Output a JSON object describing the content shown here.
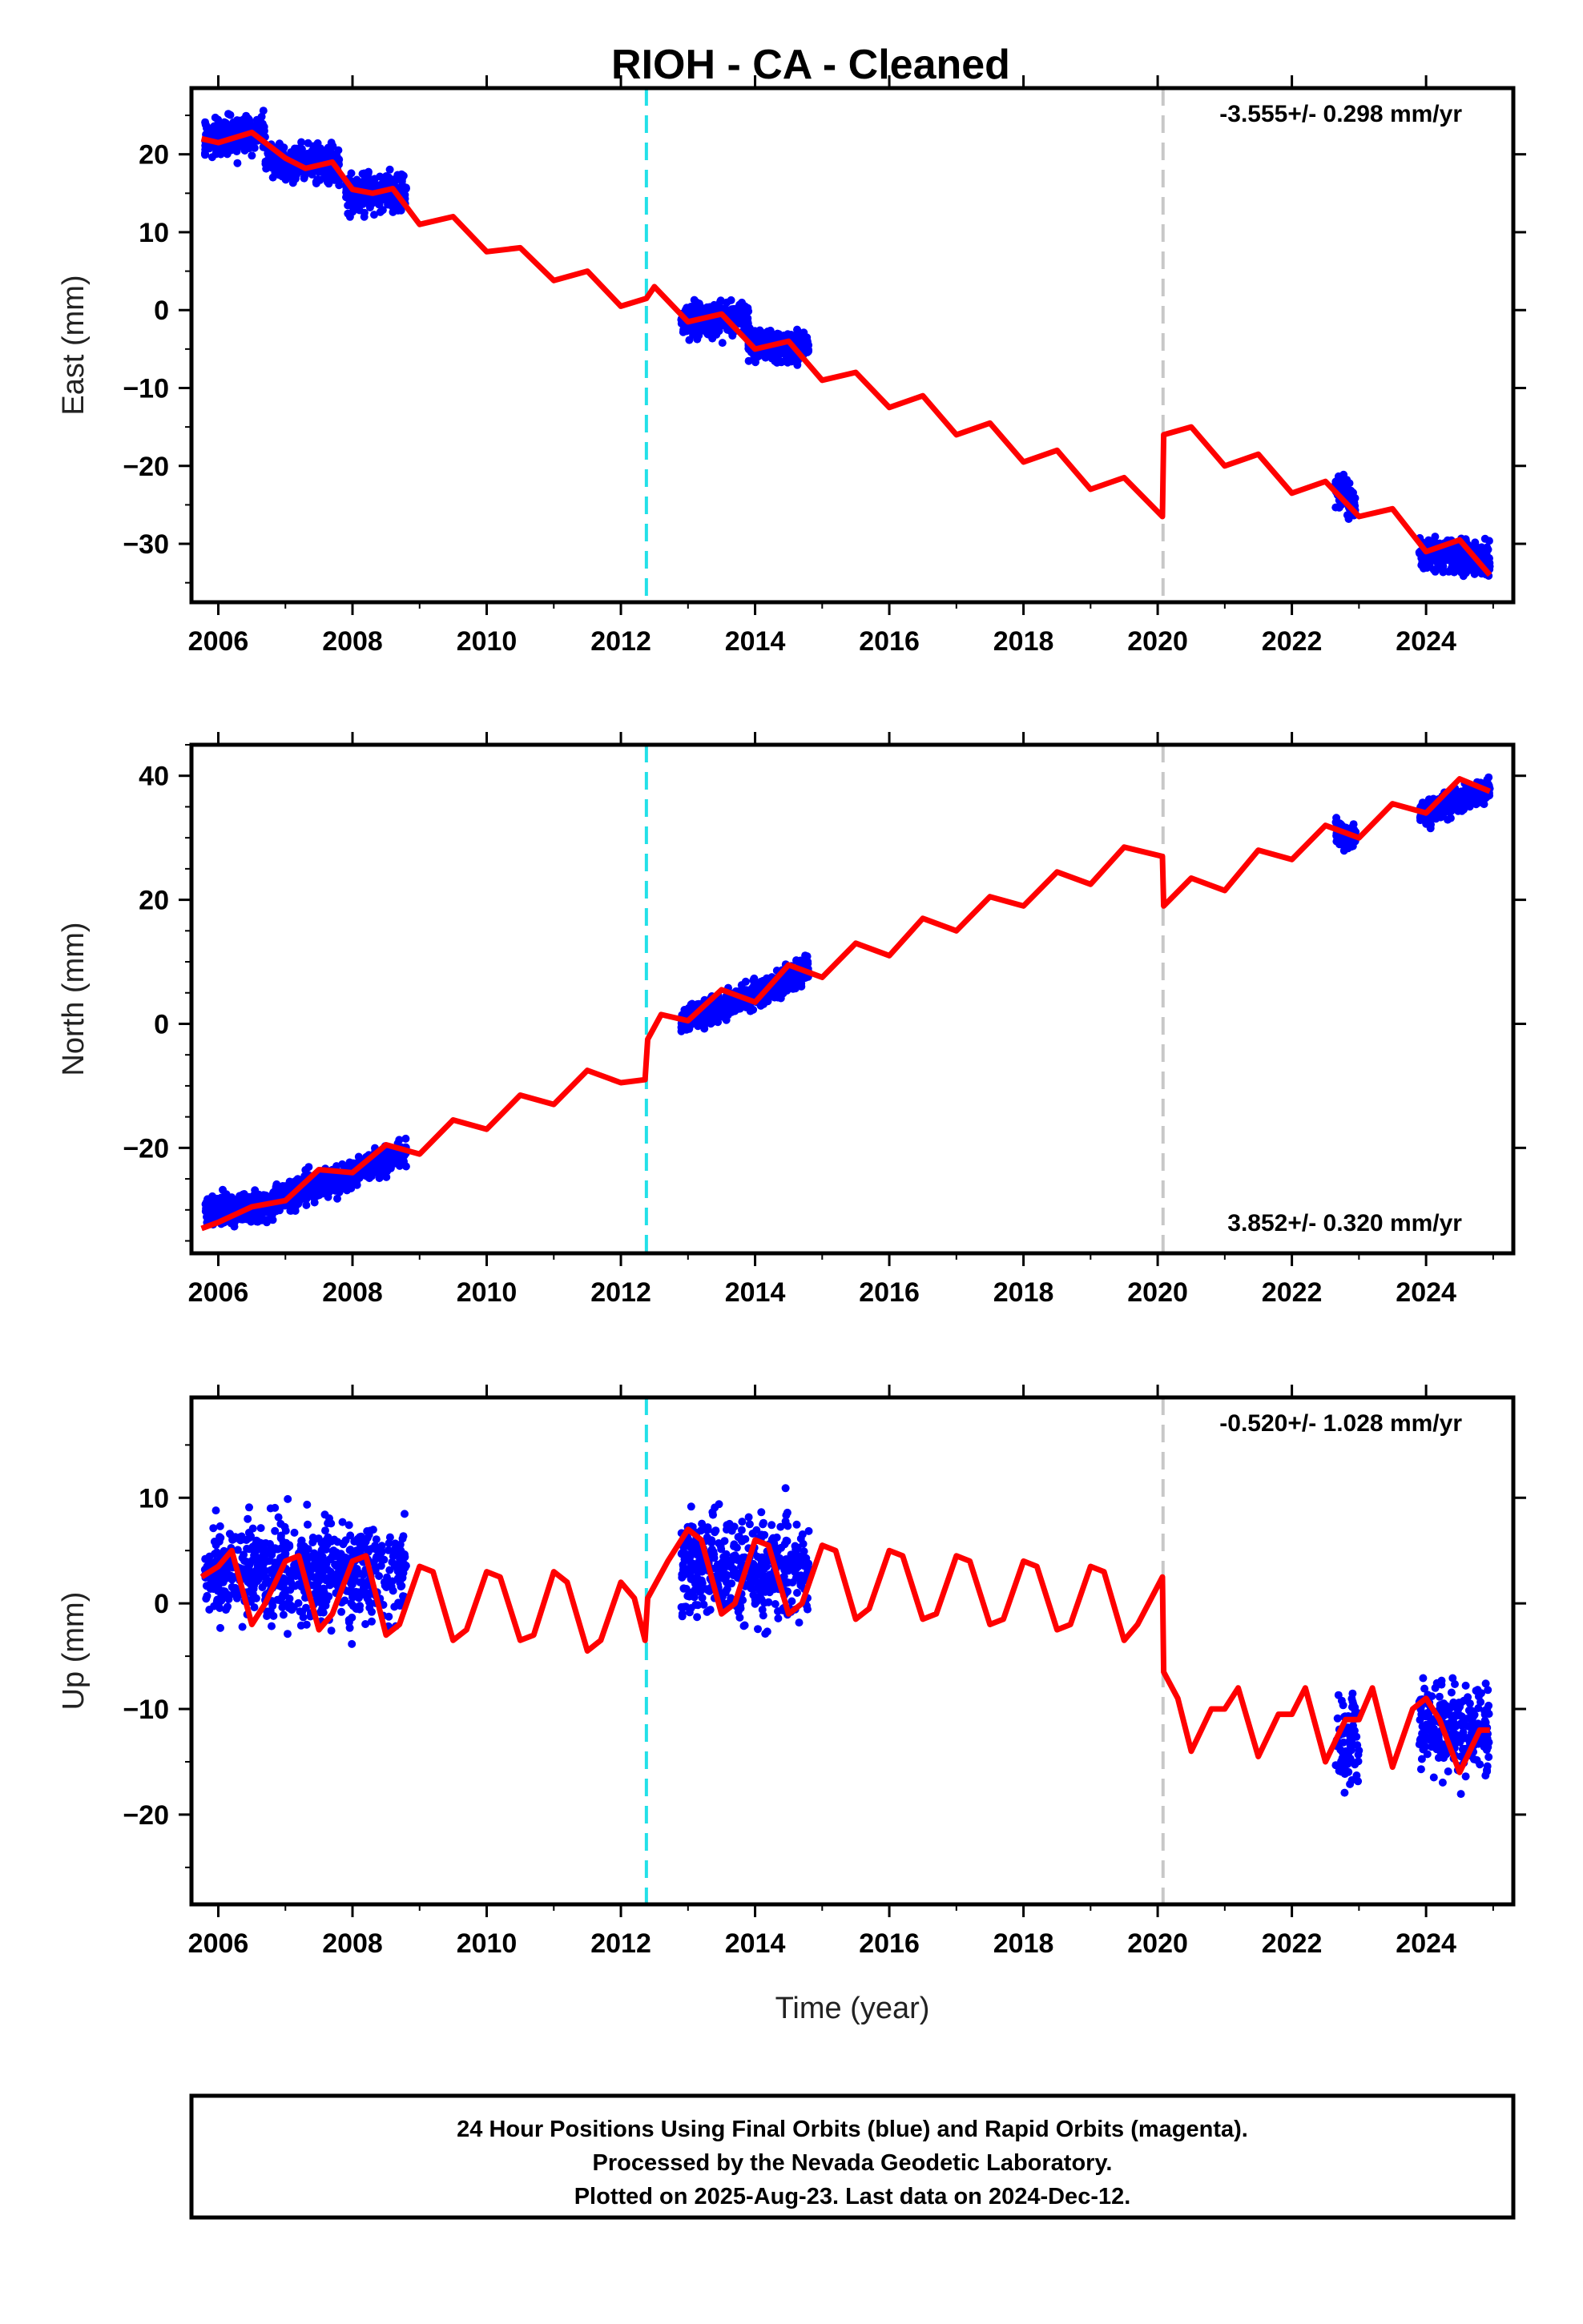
{
  "chart_data": {
    "type": "scatter",
    "title": "RIOH  - CA - Cleaned",
    "xlabel": "Time (year)",
    "xlim": [
      2005.6,
      2025.3
    ],
    "x_ticks": [
      "2006",
      "2008",
      "2010",
      "2012",
      "2014",
      "2016",
      "2018",
      "2020",
      "2022",
      "2024"
    ],
    "vertical_markers": [
      {
        "x": 2012.38,
        "color": "#22e0e8",
        "style": "dashed"
      },
      {
        "x": 2020.08,
        "color": "#c8c8c8",
        "style": "dashed"
      }
    ],
    "colors": {
      "points": "#0000ff",
      "model": "#ff0000"
    },
    "panels": [
      {
        "name": "east",
        "ylabel": "East (mm)",
        "ylim": [
          -37.5,
          28.5
        ],
        "y_ticks": [
          "20",
          "10",
          "0",
          "−10",
          "−20",
          "−30"
        ],
        "rate_label": "-3.555+/- 0.298 mm/yr",
        "rate_position": "top-right",
        "model": {
          "x": [
            2005.75,
            2006.0,
            2006.5,
            2007.0,
            2007.3,
            2007.7,
            2008.0,
            2008.3,
            2008.6,
            2009.0,
            2009.5,
            2010.0,
            2010.5,
            2011.0,
            2011.5,
            2012.0,
            2012.38,
            2012.5,
            2013.0,
            2013.5,
            2014.0,
            2014.5,
            2015.0,
            2015.5,
            2016.0,
            2016.5,
            2017.0,
            2017.5,
            2018.0,
            2018.5,
            2019.0,
            2019.5,
            2020.07,
            2020.09,
            2020.5,
            2021.0,
            2021.5,
            2022.0,
            2022.5,
            2023.0,
            2023.5,
            2024.0,
            2024.5,
            2024.95
          ],
          "y": [
            22,
            21.5,
            22.8,
            19.5,
            18.2,
            19,
            15.5,
            15,
            15.6,
            11,
            12,
            7.5,
            8,
            3.8,
            5,
            0.5,
            1.5,
            3,
            -1.5,
            -0.5,
            -5,
            -4,
            -9,
            -8,
            -12.5,
            -11,
            -16,
            -14.5,
            -19.5,
            -18,
            -23,
            -21.5,
            -26.5,
            -16,
            -15,
            -20,
            -18.5,
            -23.5,
            -22,
            -26.5,
            -25.5,
            -31,
            -29.5,
            -34
          ]
        },
        "points": [
          {
            "x_range": [
              2005.8,
              2006.7
            ],
            "center": [
              22,
              23
            ],
            "spread": 2.2
          },
          {
            "x_range": [
              2006.7,
              2007.8
            ],
            "center": [
              19.5,
              18.5
            ],
            "spread": 2.0
          },
          {
            "x_range": [
              2007.9,
              2008.8
            ],
            "center": [
              15.2,
              15.2
            ],
            "spread": 2.3
          },
          {
            "x_range": [
              2012.9,
              2013.9
            ],
            "center": [
              -1.2,
              -1.0
            ],
            "spread": 1.8
          },
          {
            "x_range": [
              2013.9,
              2014.8
            ],
            "center": [
              -4.5,
              -4.5
            ],
            "spread": 1.8
          },
          {
            "x_range": [
              2022.65,
              2022.95
            ],
            "center": [
              -22.5,
              -25
            ],
            "spread": 2.0
          },
          {
            "x_range": [
              2023.9,
              2024.95
            ],
            "center": [
              -31,
              -32
            ],
            "spread": 1.8
          }
        ]
      },
      {
        "name": "north",
        "ylabel": "North (mm)",
        "ylim": [
          -37,
          45
        ],
        "y_ticks": [
          "40",
          "20",
          "0",
          "−20"
        ],
        "rate_label": "3.852+/- 0.320 mm/yr",
        "rate_position": "bottom-right",
        "model": {
          "x": [
            2005.75,
            2006.0,
            2006.5,
            2007.0,
            2007.5,
            2008.0,
            2008.5,
            2009.0,
            2009.5,
            2010.0,
            2010.5,
            2011.0,
            2011.5,
            2012.0,
            2012.36,
            2012.4,
            2012.6,
            2013.0,
            2013.5,
            2014.0,
            2014.5,
            2015.0,
            2015.5,
            2016.0,
            2016.5,
            2017.0,
            2017.5,
            2018.0,
            2018.5,
            2019.0,
            2019.5,
            2020.07,
            2020.09,
            2020.5,
            2021.0,
            2021.5,
            2022.0,
            2022.5,
            2023.0,
            2023.5,
            2024.0,
            2024.5,
            2024.95
          ],
          "y": [
            -33,
            -32,
            -29.5,
            -28.5,
            -23.5,
            -24,
            -19.5,
            -21,
            -15.5,
            -17,
            -11.5,
            -13,
            -7.5,
            -9.5,
            -9,
            -2.5,
            1.5,
            0.5,
            5.5,
            3.5,
            9.5,
            7.5,
            13,
            11,
            17,
            15,
            20.5,
            19,
            24.5,
            22.5,
            28.5,
            27,
            19,
            23.5,
            21.5,
            28,
            26.5,
            32,
            30,
            35.5,
            34,
            39.5,
            37.5
          ]
        },
        "points": [
          {
            "x_range": [
              2005.8,
              2006.8
            ],
            "center": [
              -30,
              -29.5
            ],
            "spread": 2.0
          },
          {
            "x_range": [
              2006.8,
              2007.9
            ],
            "center": [
              -28.5,
              -24.5
            ],
            "spread": 2.0
          },
          {
            "x_range": [
              2007.9,
              2008.8
            ],
            "center": [
              -24.5,
              -20.5
            ],
            "spread": 2.0
          },
          {
            "x_range": [
              2012.9,
              2013.9
            ],
            "center": [
              0.5,
              4.5
            ],
            "spread": 1.8
          },
          {
            "x_range": [
              2013.9,
              2014.8
            ],
            "center": [
              4,
              9
            ],
            "spread": 1.8
          },
          {
            "x_range": [
              2022.65,
              2022.95
            ],
            "center": [
              31,
              30
            ],
            "spread": 2.0
          },
          {
            "x_range": [
              2023.9,
              2024.95
            ],
            "center": [
              34,
              38
            ],
            "spread": 1.8
          }
        ]
      },
      {
        "name": "up",
        "ylabel": "Up (mm)",
        "ylim": [
          -28.5,
          19.5
        ],
        "y_ticks": [
          "10",
          "0",
          "−10",
          "−20"
        ],
        "rate_label": "-0.520+/- 1.028 mm/yr",
        "rate_position": "top-right",
        "model": {
          "x": [
            2005.75,
            2006.0,
            2006.2,
            2006.5,
            2006.7,
            2007.0,
            2007.2,
            2007.5,
            2007.7,
            2008.0,
            2008.2,
            2008.5,
            2008.7,
            2009.0,
            2009.2,
            2009.5,
            2009.7,
            2010.0,
            2010.2,
            2010.5,
            2010.7,
            2011.0,
            2011.2,
            2011.5,
            2011.7,
            2012.0,
            2012.2,
            2012.36,
            2012.4,
            2012.7,
            2013.0,
            2013.2,
            2013.5,
            2013.7,
            2014.0,
            2014.2,
            2014.5,
            2014.7,
            2015.0,
            2015.2,
            2015.5,
            2015.7,
            2016.0,
            2016.2,
            2016.5,
            2016.7,
            2017.0,
            2017.2,
            2017.5,
            2017.7,
            2018.0,
            2018.2,
            2018.5,
            2018.7,
            2019.0,
            2019.2,
            2019.5,
            2019.7,
            2020.07,
            2020.09,
            2020.3,
            2020.5,
            2020.8,
            2021.0,
            2021.2,
            2021.5,
            2021.8,
            2022.0,
            2022.2,
            2022.5,
            2022.8,
            2023.0,
            2023.2,
            2023.5,
            2023.8,
            2024.0,
            2024.2,
            2024.5,
            2024.8,
            2024.95
          ],
          "y": [
            2.5,
            3.5,
            5,
            -2,
            0,
            4,
            4.5,
            -2.5,
            -1,
            4,
            4.5,
            -3,
            -2,
            3.5,
            3,
            -3.5,
            -2.5,
            3,
            2.5,
            -3.5,
            -3,
            3,
            2,
            -4.5,
            -3.5,
            2,
            0.5,
            -3.5,
            0.5,
            4,
            7,
            6,
            -1,
            0,
            6,
            5.5,
            -1,
            0,
            5.5,
            5,
            -1.5,
            -0.5,
            5,
            4.5,
            -1.5,
            -1,
            4.5,
            4,
            -2,
            -1.5,
            4,
            3.5,
            -2.5,
            -2,
            3.5,
            3,
            -3.5,
            -2,
            2.5,
            -6.5,
            -9,
            -14,
            -10,
            -10,
            -8,
            -14.5,
            -10.5,
            -10.5,
            -8,
            -15,
            -11,
            -11,
            -8,
            -15.5,
            -10,
            -9,
            -11,
            -16,
            -12,
            -12
          ]
        },
        "points": [
          {
            "x_range": [
              2005.8,
              2008.8
            ],
            "center": [
              3,
              3
            ],
            "spread": 4.2
          },
          {
            "x_range": [
              2012.9,
              2014.8
            ],
            "center": [
              3.5,
              3
            ],
            "spread": 4.2
          },
          {
            "x_range": [
              2022.65,
              2023.0
            ],
            "center": [
              -13,
              -13
            ],
            "spread": 4.0
          },
          {
            "x_range": [
              2023.9,
              2024.95
            ],
            "center": [
              -11,
              -12
            ],
            "spread": 3.8
          }
        ]
      }
    ]
  },
  "footer": {
    "line1": "24 Hour Positions Using Final Orbits (blue) and Rapid Orbits (magenta).",
    "line2": "Processed by the Nevada Geodetic Laboratory.",
    "line3": "Plotted on 2025-Aug-23. Last data on 2024-Dec-12."
  }
}
